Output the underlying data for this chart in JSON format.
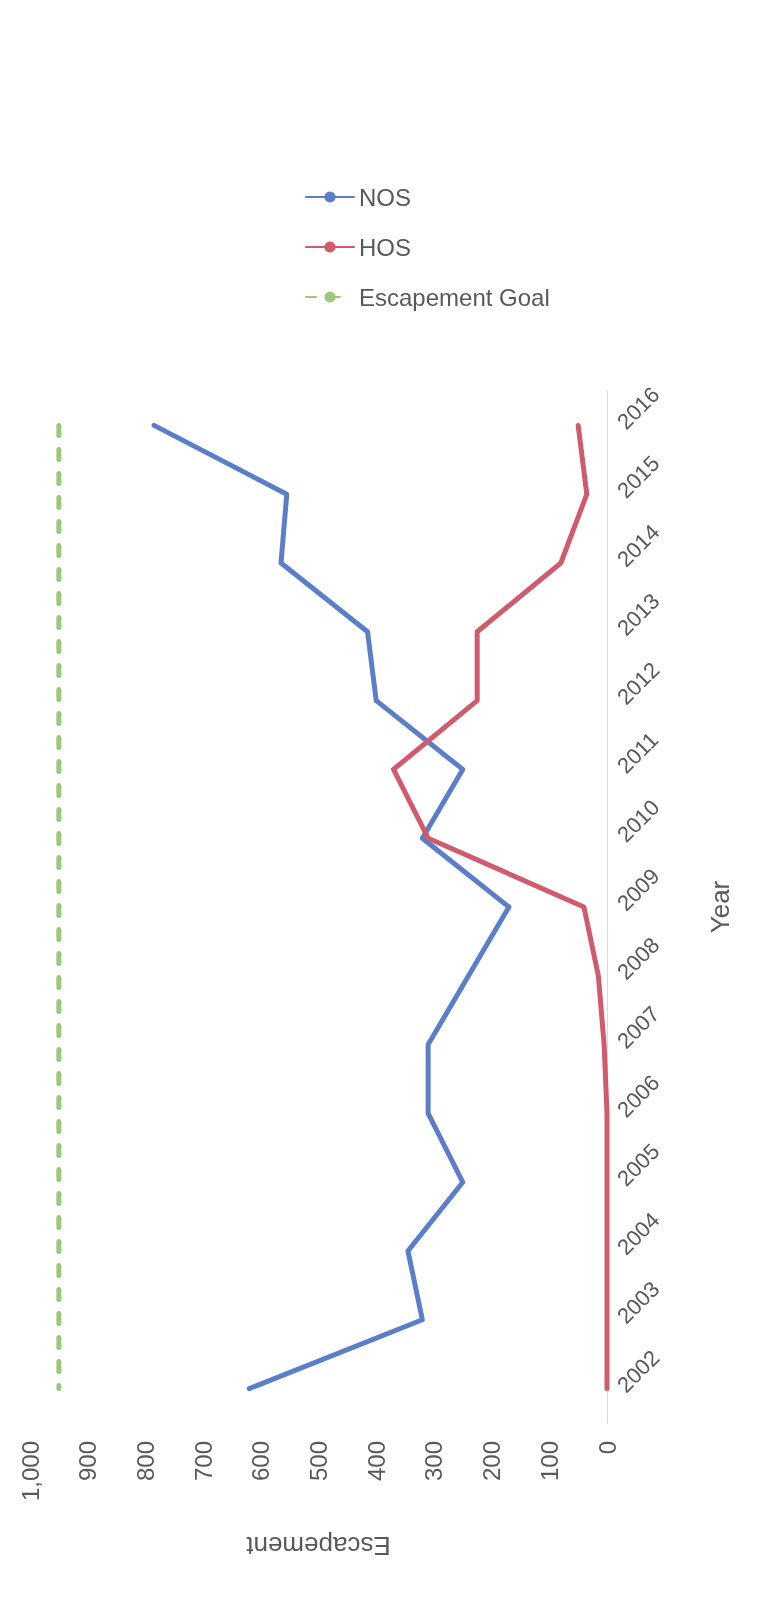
{
  "chart_data": {
    "type": "line",
    "orientation": "horizontal",
    "xlabel": "Escapement",
    "ylabel": "Year",
    "categories": [
      "2016",
      "2015",
      "2014",
      "2013",
      "2012",
      "2011",
      "2010",
      "2009",
      "2008",
      "2007",
      "2006",
      "2005",
      "2004",
      "2003",
      "2002"
    ],
    "series": [
      {
        "name": "NOS",
        "color": "#5a7fc8",
        "values": [
          785,
          555,
          565,
          415,
          400,
          250,
          320,
          170,
          240,
          310,
          310,
          250,
          345,
          320,
          620
        ]
      },
      {
        "name": "HOS",
        "color": "#cf5b6c",
        "values": [
          50,
          35,
          80,
          225,
          225,
          370,
          310,
          40,
          15,
          5,
          0,
          0,
          0,
          0,
          0
        ]
      },
      {
        "name": "Escapement Goal",
        "color": "#9bc87a",
        "line_style": "dashed",
        "values": [
          950,
          950,
          950,
          950,
          950,
          950,
          950,
          950,
          950,
          950,
          950,
          950,
          950,
          950,
          950
        ]
      }
    ],
    "xlim": [
      1000,
      0
    ],
    "xticks": [
      {
        "value": 1000,
        "label": "1,000"
      },
      900,
      800,
      700,
      600,
      500,
      400,
      300,
      200,
      100,
      0
    ],
    "grid": false,
    "legend": "top",
    "marker": "none",
    "line_style": "solid"
  }
}
